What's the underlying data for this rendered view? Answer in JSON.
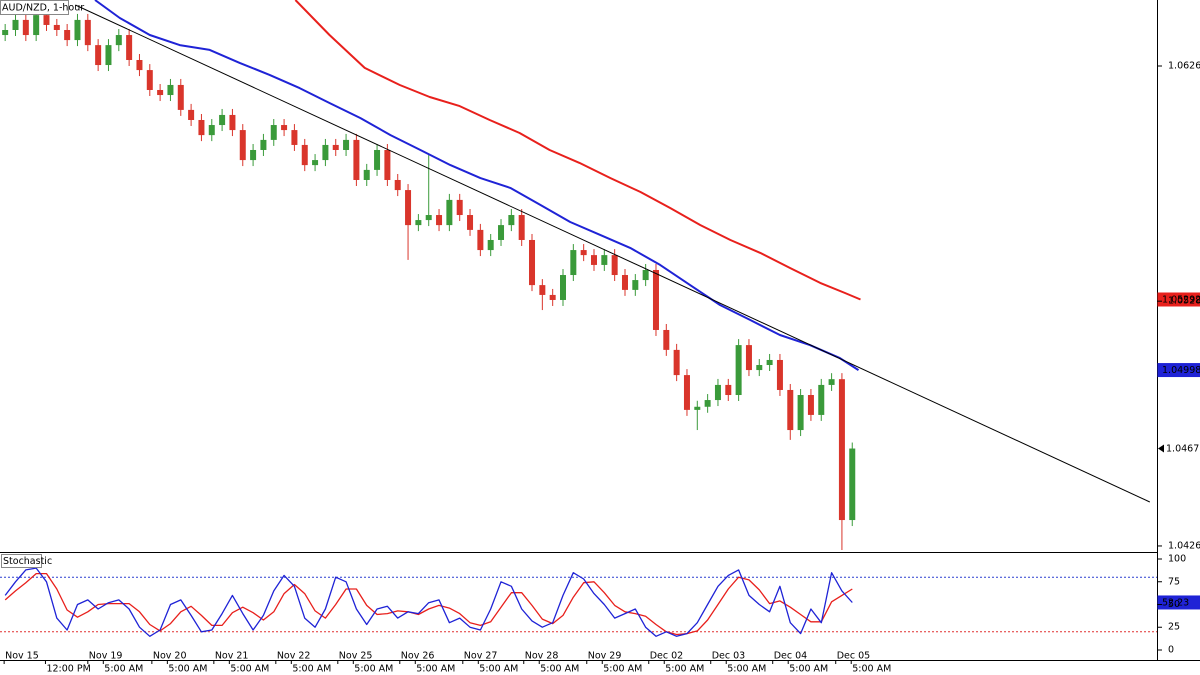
{
  "chart_data": [
    {
      "type": "candlestick",
      "title": "AUD/NZD, 1-hour",
      "xlim": [
        0,
        112
      ],
      "ylim": [
        1.04244,
        1.0654
      ],
      "yticks": [
        1.06265,
        1.05285,
        1.04265
      ],
      "xticks": [
        {
          "value": 0.4,
          "label": "Nov 15"
        },
        {
          "value": 8.5,
          "label": "Nov 19"
        },
        {
          "value": 14.7,
          "label": "Nov 20"
        },
        {
          "value": 20.7,
          "label": "Nov 21"
        },
        {
          "value": 26.7,
          "label": "Nov 22"
        },
        {
          "value": 32.7,
          "label": "Nov 25"
        },
        {
          "value": 38.7,
          "label": "Nov 26"
        },
        {
          "value": 44.8,
          "label": "Nov 27"
        },
        {
          "value": 50.7,
          "label": "Nov 28"
        },
        {
          "value": 56.8,
          "label": "Nov 29"
        },
        {
          "value": 62.8,
          "label": "Dec 02"
        },
        {
          "value": 68.8,
          "label": "Dec 03"
        },
        {
          "value": 74.8,
          "label": "Dec 04"
        },
        {
          "value": 80.9,
          "label": "Dec 05"
        }
      ],
      "xticks_sub": [
        {
          "value": 4.4,
          "label": "12:00 PM"
        },
        {
          "value": 10.0,
          "label": "5:00 AM"
        },
        {
          "value": 16.2,
          "label": "5:00 AM"
        },
        {
          "value": 22.2,
          "label": "5:00 AM"
        },
        {
          "value": 28.2,
          "label": "5:00 AM"
        },
        {
          "value": 34.2,
          "label": "5:00 AM"
        },
        {
          "value": 40.2,
          "label": "5:00 AM"
        },
        {
          "value": 46.3,
          "label": "5:00 AM"
        },
        {
          "value": 52.2,
          "label": "5:00 AM"
        },
        {
          "value": 58.3,
          "label": "5:00 AM"
        },
        {
          "value": 64.3,
          "label": "5:00 AM"
        },
        {
          "value": 70.3,
          "label": "5:00 AM"
        },
        {
          "value": 76.3,
          "label": "5:00 AM"
        },
        {
          "value": 82.4,
          "label": "5:00 AM"
        }
      ],
      "up_color": "#3a9a3a",
      "down_color": "#d9352b",
      "open": [
        1.06394,
        1.06415,
        1.06457,
        1.06394,
        1.06477,
        1.06436,
        1.06415,
        1.06373,
        1.06457,
        1.06352,
        1.06269,
        1.06352,
        1.06394,
        1.0629,
        1.06248,
        1.06165,
        1.06144,
        1.06186,
        1.06082,
        1.0604,
        1.05977,
        1.06019,
        1.06061,
        1.05998,
        1.05873,
        1.05915,
        1.05957,
        1.06019,
        1.05998,
        1.05936,
        1.05852,
        1.05873,
        1.05936,
        1.05915,
        1.05957,
        1.0579,
        1.05832,
        1.05915,
        1.0579,
        1.05748,
        1.05602,
        1.05623,
        1.05644,
        1.05602,
        1.05707,
        1.05644,
        1.05582,
        1.05498,
        1.0554,
        1.05602,
        1.05644,
        1.0554,
        1.05352,
        1.05311,
        1.0529,
        1.05394,
        1.05498,
        1.05477,
        1.05436,
        1.05477,
        1.05394,
        1.05332,
        1.05373,
        1.05415,
        1.05165,
        1.05082,
        1.04977,
        1.04832,
        1.04845,
        1.04873,
        1.04936,
        1.04894,
        1.05102,
        1.04998,
        1.05019,
        1.0504,
        1.04915,
        1.04748,
        1.04894,
        1.04811,
        1.04936,
        1.0496,
        1.04373
      ],
      "high": [
        1.0644,
        1.06482,
        1.06482,
        1.06502,
        1.06502,
        1.06461,
        1.0644,
        1.06482,
        1.06482,
        1.06377,
        1.06377,
        1.06419,
        1.06419,
        1.06315,
        1.06273,
        1.0619,
        1.06211,
        1.06211,
        1.06107,
        1.06065,
        1.06044,
        1.06086,
        1.06086,
        1.06023,
        1.0594,
        1.05982,
        1.06044,
        1.06044,
        1.06023,
        1.05961,
        1.05898,
        1.05961,
        1.05961,
        1.05982,
        1.05982,
        1.05857,
        1.0594,
        1.0594,
        1.05815,
        1.05773,
        1.05648,
        1.05894,
        1.05669,
        1.05732,
        1.05732,
        1.05669,
        1.05607,
        1.05565,
        1.05627,
        1.05669,
        1.05669,
        1.05565,
        1.05377,
        1.05336,
        1.05419,
        1.05523,
        1.05523,
        1.05502,
        1.05502,
        1.05502,
        1.05419,
        1.05398,
        1.0544,
        1.0544,
        1.0519,
        1.05107,
        1.05002,
        1.0487,
        1.04898,
        1.04961,
        1.04961,
        1.05127,
        1.05127,
        1.05044,
        1.05065,
        1.05065,
        1.0494,
        1.04919,
        1.04919,
        1.04961,
        1.04985,
        1.04985,
        1.04696
      ],
      "low": [
        1.06369,
        1.0639,
        1.06369,
        1.06369,
        1.06411,
        1.0639,
        1.06348,
        1.06348,
        1.06327,
        1.06244,
        1.06244,
        1.06327,
        1.06265,
        1.06223,
        1.0614,
        1.06119,
        1.06119,
        1.06057,
        1.06015,
        1.05952,
        1.05952,
        1.05994,
        1.05973,
        1.05848,
        1.05848,
        1.0589,
        1.05932,
        1.05973,
        1.05911,
        1.05827,
        1.05827,
        1.05848,
        1.0589,
        1.0589,
        1.05765,
        1.05765,
        1.05807,
        1.05765,
        1.05723,
        1.05457,
        1.05577,
        1.05598,
        1.05577,
        1.05577,
        1.05619,
        1.05557,
        1.05473,
        1.05473,
        1.05515,
        1.05577,
        1.05515,
        1.05327,
        1.05248,
        1.05265,
        1.05265,
        1.05369,
        1.05452,
        1.05411,
        1.05411,
        1.05369,
        1.05307,
        1.05307,
        1.05348,
        1.0514,
        1.05057,
        1.04952,
        1.04807,
        1.04748,
        1.0482,
        1.04848,
        1.04869,
        1.04869,
        1.04973,
        1.04973,
        1.04994,
        1.0489,
        1.04707,
        1.04723,
        1.04786,
        1.04786,
        1.04911,
        1.04248,
        1.04348
      ],
      "close": [
        1.06415,
        1.06457,
        1.06394,
        1.06477,
        1.06436,
        1.06415,
        1.06373,
        1.06457,
        1.06352,
        1.06269,
        1.06352,
        1.06394,
        1.0629,
        1.06248,
        1.06165,
        1.06144,
        1.06186,
        1.06082,
        1.0604,
        1.05977,
        1.06019,
        1.06061,
        1.05998,
        1.05873,
        1.05915,
        1.05957,
        1.06019,
        1.05998,
        1.05936,
        1.05852,
        1.05873,
        1.05936,
        1.05915,
        1.05957,
        1.0579,
        1.05832,
        1.05915,
        1.0579,
        1.05748,
        1.05602,
        1.05623,
        1.05644,
        1.05602,
        1.05707,
        1.05644,
        1.05582,
        1.05498,
        1.0554,
        1.05602,
        1.05644,
        1.0554,
        1.05352,
        1.05311,
        1.0529,
        1.05394,
        1.05498,
        1.05477,
        1.05436,
        1.05477,
        1.05394,
        1.05332,
        1.05373,
        1.05415,
        1.05165,
        1.05082,
        1.04977,
        1.04832,
        1.04845,
        1.04873,
        1.04936,
        1.04894,
        1.05102,
        1.04998,
        1.05019,
        1.0504,
        1.04915,
        1.04748,
        1.04894,
        1.04811,
        1.04936,
        1.0496,
        1.04373,
        1.04671
      ],
      "last_price": 1.04671,
      "series": [
        {
          "color": "#1f23d6",
          "width": 2,
          "x": [
            9.2,
            11.6,
            14.5,
            17.4,
            20.3,
            23.2,
            26.1,
            29.0,
            31.9,
            34.9,
            37.8,
            40.7,
            43.6,
            46.5,
            49.4,
            52.3,
            55.2,
            58.1,
            61.0,
            63.9,
            66.8,
            69.7,
            72.6,
            75.5,
            78.4,
            81.3,
            83.1
          ],
          "values": [
            1.0654,
            1.06465,
            1.06394,
            1.06352,
            1.06332,
            1.06278,
            1.06228,
            1.06173,
            1.06111,
            1.06048,
            1.05977,
            1.05915,
            1.05852,
            1.05798,
            1.05757,
            1.05686,
            1.05615,
            1.05561,
            1.05507,
            1.05436,
            1.05352,
            1.05269,
            1.05207,
            1.05144,
            1.05102,
            1.05048,
            1.04998
          ],
          "last_label": 1.04998
        },
        {
          "color": "#e8201c",
          "width": 2,
          "x": [
            28.6,
            31.9,
            35.3,
            38.7,
            41.6,
            44.5,
            47.4,
            50.3,
            53.2,
            56.1,
            59.1,
            62.0,
            64.9,
            67.8,
            70.7,
            73.6,
            76.5,
            79.4,
            81.8,
            83.3
          ],
          "values": [
            1.0654,
            1.06394,
            1.06257,
            1.06186,
            1.06136,
            1.06098,
            1.0604,
            1.05986,
            1.05915,
            1.05861,
            1.05798,
            1.0574,
            1.05673,
            1.05602,
            1.0554,
            1.05486,
            1.05423,
            1.05361,
            1.05319,
            1.05292
          ],
          "last_label": 1.05292
        },
        {
          "color": "#000000",
          "width": 1,
          "x": [
            7.3,
            111.3
          ],
          "values": [
            1.06519,
            1.04448
          ]
        }
      ]
    },
    {
      "type": "line",
      "title": "Stochastic",
      "ylim": [
        -11,
        106.6
      ],
      "yticks": [
        0,
        25,
        50,
        75,
        100
      ],
      "levels": [
        {
          "value": 80,
          "color": "#2b3fd0"
        },
        {
          "value": 20,
          "color": "#e03030"
        }
      ],
      "series": [
        {
          "color": "#1f23d6",
          "values": [
            60,
            75,
            88,
            90,
            75,
            35,
            22,
            50,
            55,
            45,
            52,
            55,
            45,
            25,
            15,
            22,
            50,
            55,
            38,
            20,
            22,
            40,
            60,
            40,
            22,
            38,
            65,
            82,
            70,
            35,
            25,
            45,
            80,
            75,
            45,
            28,
            45,
            48,
            35,
            42,
            40,
            52,
            55,
            30,
            35,
            25,
            22,
            45,
            75,
            70,
            45,
            32,
            25,
            30,
            60,
            85,
            78,
            62,
            50,
            35,
            40,
            45,
            25,
            15,
            20,
            15,
            18,
            30,
            50,
            70,
            82,
            88,
            60,
            50,
            42,
            70,
            30,
            18,
            45,
            30,
            85,
            65,
            52.23
          ],
          "last_label": 52.23
        },
        {
          "color": "#e8201c",
          "values": [
            55,
            65,
            74,
            84,
            84,
            67,
            44,
            36,
            42,
            50,
            51,
            51,
            51,
            42,
            28,
            21,
            29,
            42,
            48,
            38,
            27,
            27,
            41,
            47,
            41,
            33,
            42,
            62,
            72,
            62,
            43,
            35,
            50,
            67,
            67,
            49,
            39,
            40,
            43,
            42,
            39,
            45,
            49,
            46,
            40,
            30,
            27,
            31,
            47,
            63,
            63,
            49,
            34,
            29,
            38,
            58,
            74,
            75,
            63,
            49,
            42,
            40,
            37,
            28,
            20,
            17,
            18,
            21,
            33,
            50,
            67,
            80,
            77,
            66,
            51,
            54,
            47,
            39,
            31,
            31,
            53,
            60,
            67
          ]
        }
      ]
    }
  ]
}
